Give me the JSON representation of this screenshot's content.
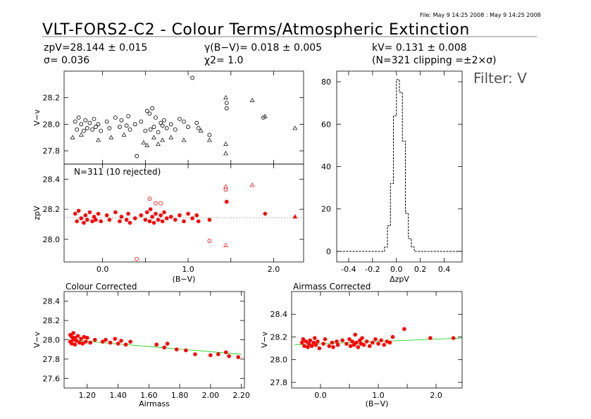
{
  "header": {
    "file_line": "File: May  9 14:25 2008 : May  9 14:25 2008",
    "title": "VLT-FORS2-C2 - Colour Terms/Atmospheric Extinction",
    "stats": {
      "zp": "zpV=28.144 ± 0.015",
      "sigma": "σ= 0.036",
      "gamma": "γ(B−V)= 0.018 ± 0.005",
      "chi2": "χ2= 1.0",
      "k": "kV= 0.131 ± 0.008",
      "clip": "(N=321 clipping =±2×σ)"
    },
    "filter": "Filter: V"
  },
  "colors": {
    "data": "#ff0000",
    "fit": "#00cc00",
    "axes": "#000000",
    "reference": "#999999"
  },
  "chart_data": [
    {
      "id": "raw",
      "type": "scatter",
      "ylabel": "V−v",
      "xlim": [
        -0.45,
        2.35
      ],
      "ylim": [
        27.7,
        28.4
      ],
      "y_ticks": [
        27.8,
        28.0,
        28.2
      ],
      "x_ticks": [
        0.0,
        0.5,
        1.0,
        1.5,
        2.0
      ],
      "markers": [
        "circle",
        "triangle"
      ],
      "points": [
        [
          -0.32,
          28.02
        ],
        [
          -0.3,
          27.96
        ],
        [
          -0.28,
          28.05
        ],
        [
          -0.25,
          28.0
        ],
        [
          -0.22,
          27.95
        ],
        [
          -0.2,
          28.03
        ],
        [
          -0.18,
          27.97
        ],
        [
          -0.15,
          28.01
        ],
        [
          -0.12,
          27.96
        ],
        [
          -0.1,
          28.04
        ],
        [
          -0.08,
          27.98
        ],
        [
          -0.05,
          28.0
        ],
        [
          -0.02,
          27.95
        ],
        [
          0.05,
          28.02
        ],
        [
          0.08,
          27.97
        ],
        [
          0.15,
          28.05
        ],
        [
          0.2,
          27.98
        ],
        [
          0.22,
          28.03
        ],
        [
          0.28,
          27.99
        ],
        [
          0.3,
          28.06
        ],
        [
          0.32,
          27.96
        ],
        [
          0.38,
          28.0
        ],
        [
          0.4,
          27.76
        ],
        [
          0.45,
          28.02
        ],
        [
          0.5,
          27.95
        ],
        [
          0.52,
          28.1
        ],
        [
          0.55,
          28.08
        ],
        [
          0.56,
          27.96
        ],
        [
          0.58,
          28.12
        ],
        [
          0.6,
          27.98
        ],
        [
          0.62,
          28.05
        ],
        [
          0.65,
          27.94
        ],
        [
          0.68,
          28.01
        ],
        [
          0.7,
          27.99
        ],
        [
          0.72,
          28.03
        ],
        [
          0.75,
          27.97
        ],
        [
          0.8,
          28.0
        ],
        [
          0.85,
          27.96
        ],
        [
          0.9,
          28.04
        ],
        [
          0.95,
          28.02
        ],
        [
          1.0,
          27.98
        ],
        [
          1.05,
          28.35
        ],
        [
          1.1,
          28.01
        ],
        [
          1.12,
          27.97
        ],
        [
          1.25,
          27.92
        ],
        [
          1.45,
          28.12
        ],
        [
          1.45,
          28.16
        ],
        [
          1.88,
          28.05
        ]
      ],
      "triangles": [
        [
          -0.35,
          27.9
        ],
        [
          -0.25,
          27.92
        ],
        [
          -0.05,
          27.88
        ],
        [
          0.1,
          27.9
        ],
        [
          0.25,
          27.92
        ],
        [
          0.48,
          27.86
        ],
        [
          0.52,
          27.84
        ],
        [
          0.6,
          27.9
        ],
        [
          0.65,
          27.85
        ],
        [
          0.7,
          27.88
        ],
        [
          0.8,
          27.9
        ],
        [
          0.95,
          27.88
        ],
        [
          1.15,
          27.95
        ],
        [
          1.25,
          27.88
        ],
        [
          1.44,
          27.78
        ],
        [
          1.44,
          27.85
        ],
        [
          1.44,
          28.2
        ],
        [
          1.75,
          28.18
        ],
        [
          1.9,
          28.06
        ],
        [
          2.25,
          27.97
        ]
      ]
    },
    {
      "id": "zp",
      "type": "scatter",
      "title": "N=311 (10 rejected)",
      "xlabel": "(B−V)",
      "ylabel": "zpV",
      "xlim": [
        -0.45,
        2.35
      ],
      "ylim": [
        27.85,
        28.5
      ],
      "y_ticks": [
        28.0,
        28.2,
        28.4
      ],
      "x_ticks": [
        0.0,
        0.5,
        1.0,
        1.5,
        2.0
      ],
      "x_tick_labels": [
        "0.0",
        "1.0",
        "2.0"
      ],
      "reference_line": 28.144,
      "points": [
        [
          -0.32,
          28.17
        ],
        [
          -0.3,
          28.12
        ],
        [
          -0.28,
          28.19
        ],
        [
          -0.25,
          28.14
        ],
        [
          -0.22,
          28.11
        ],
        [
          -0.2,
          28.16
        ],
        [
          -0.18,
          28.13
        ],
        [
          -0.15,
          28.18
        ],
        [
          -0.12,
          28.12
        ],
        [
          -0.1,
          28.15
        ],
        [
          -0.08,
          28.13
        ],
        [
          -0.05,
          28.17
        ],
        [
          -0.02,
          28.12
        ],
        [
          0.05,
          28.16
        ],
        [
          0.08,
          28.13
        ],
        [
          0.15,
          28.18
        ],
        [
          0.2,
          28.12
        ],
        [
          0.22,
          28.15
        ],
        [
          0.28,
          28.13
        ],
        [
          0.3,
          28.17
        ],
        [
          0.32,
          28.11
        ],
        [
          0.38,
          28.14
        ],
        [
          0.45,
          28.16
        ],
        [
          0.5,
          28.13
        ],
        [
          0.52,
          28.18
        ],
        [
          0.55,
          28.12
        ],
        [
          0.56,
          28.2
        ],
        [
          0.58,
          28.15
        ],
        [
          0.6,
          28.11
        ],
        [
          0.62,
          28.17
        ],
        [
          0.65,
          28.13
        ],
        [
          0.68,
          28.16
        ],
        [
          0.7,
          28.12
        ],
        [
          0.72,
          28.18
        ],
        [
          0.75,
          28.14
        ],
        [
          0.8,
          28.15
        ],
        [
          0.85,
          28.13
        ],
        [
          0.9,
          28.16
        ],
        [
          0.95,
          28.12
        ],
        [
          1.0,
          28.17
        ],
        [
          1.05,
          28.14
        ],
        [
          1.1,
          28.16
        ],
        [
          1.12,
          28.12
        ],
        [
          1.25,
          28.13
        ],
        [
          1.45,
          28.25
        ],
        [
          1.9,
          28.17
        ]
      ],
      "rejected_circles": [
        [
          0.4,
          27.87
        ],
        [
          0.55,
          28.27
        ],
        [
          0.62,
          28.24
        ],
        [
          0.68,
          28.24
        ],
        [
          1.25,
          27.99
        ],
        [
          1.44,
          28.33
        ]
      ],
      "rejected_triangles": [
        [
          1.44,
          27.96
        ],
        [
          1.44,
          28.35
        ],
        [
          1.75,
          28.36
        ]
      ],
      "triangles": [
        [
          2.25,
          28.15
        ]
      ]
    },
    {
      "id": "hist",
      "type": "histogram",
      "xlabel": "ΔzpV",
      "xlim": [
        -0.5,
        0.55
      ],
      "ylim": [
        -5,
        85
      ],
      "x_ticks": [
        -0.4,
        -0.2,
        0.0,
        0.2,
        0.4
      ],
      "y_ticks": [
        0,
        20,
        40,
        60,
        80
      ],
      "bin_width": 0.025,
      "bins_start": -0.1,
      "counts": [
        2,
        12,
        32,
        64,
        81,
        75,
        52,
        18,
        6,
        2
      ]
    },
    {
      "id": "colour_corrected",
      "type": "scatter",
      "title": "Colour Corrected",
      "xlabel": "Airmass",
      "ylabel": "V−v",
      "xlim": [
        1.05,
        2.22
      ],
      "ylim": [
        27.5,
        28.5
      ],
      "y_ticks": [
        27.6,
        27.8,
        28.0,
        28.2,
        28.4
      ],
      "x_ticks": [
        1.2,
        1.4,
        1.6,
        1.8,
        2.0,
        2.2
      ],
      "x_tick_labels": [
        "1.20",
        "1.40",
        "1.60",
        "1.80",
        "2.00",
        "2.20"
      ],
      "fit": [
        [
          1.08,
          28.0
        ],
        [
          2.2,
          27.85
        ]
      ],
      "points": [
        [
          1.09,
          28.05
        ],
        [
          1.09,
          27.98
        ],
        [
          1.1,
          28.03
        ],
        [
          1.1,
          27.96
        ],
        [
          1.11,
          28.0
        ],
        [
          1.11,
          28.07
        ],
        [
          1.12,
          27.95
        ],
        [
          1.12,
          28.02
        ],
        [
          1.13,
          27.99
        ],
        [
          1.14,
          28.04
        ],
        [
          1.15,
          27.97
        ],
        [
          1.16,
          28.01
        ],
        [
          1.17,
          27.96
        ],
        [
          1.18,
          28.03
        ],
        [
          1.19,
          27.98
        ],
        [
          1.2,
          28.02
        ],
        [
          1.22,
          27.97
        ],
        [
          1.25,
          28.0
        ],
        [
          1.3,
          27.98
        ],
        [
          1.32,
          28.0
        ],
        [
          1.35,
          27.97
        ],
        [
          1.38,
          28.01
        ],
        [
          1.4,
          27.96
        ],
        [
          1.42,
          27.99
        ],
        [
          1.45,
          27.95
        ],
        [
          1.48,
          27.98
        ],
        [
          1.65,
          27.95
        ],
        [
          1.7,
          27.92
        ],
        [
          1.72,
          27.96
        ],
        [
          1.78,
          27.9
        ],
        [
          1.84,
          27.89
        ],
        [
          1.9,
          27.85
        ],
        [
          2.0,
          27.84
        ],
        [
          2.05,
          27.85
        ],
        [
          2.1,
          27.87
        ],
        [
          2.12,
          27.83
        ],
        [
          2.18,
          27.82
        ]
      ]
    },
    {
      "id": "airmass_corrected",
      "type": "scatter",
      "title": "Airmass Corrected",
      "xlabel": "(B−V)",
      "ylabel": "V−v",
      "xlim": [
        -0.5,
        2.45
      ],
      "ylim": [
        27.75,
        28.6
      ],
      "y_ticks": [
        27.8,
        28.0,
        28.2,
        28.4
      ],
      "x_ticks": [
        0.0,
        0.5,
        1.0,
        1.5,
        2.0
      ],
      "x_tick_labels": [
        "0.0",
        "1.0",
        "2.0"
      ],
      "fit": [
        [
          -0.45,
          28.13
        ],
        [
          2.45,
          28.19
        ]
      ],
      "points": [
        [
          -0.32,
          28.15
        ],
        [
          -0.3,
          28.18
        ],
        [
          -0.28,
          28.12
        ],
        [
          -0.25,
          28.16
        ],
        [
          -0.22,
          28.11
        ],
        [
          -0.2,
          28.14
        ],
        [
          -0.18,
          28.17
        ],
        [
          -0.15,
          28.12
        ],
        [
          -0.12,
          28.15
        ],
        [
          -0.1,
          28.19
        ],
        [
          -0.08,
          28.13
        ],
        [
          -0.05,
          28.16
        ],
        [
          -0.02,
          28.1
        ],
        [
          0.05,
          28.14
        ],
        [
          0.08,
          28.18
        ],
        [
          0.15,
          28.12
        ],
        [
          0.2,
          28.15
        ],
        [
          0.22,
          28.11
        ],
        [
          0.28,
          28.16
        ],
        [
          0.3,
          28.13
        ],
        [
          0.38,
          28.17
        ],
        [
          0.45,
          28.14
        ],
        [
          0.5,
          28.18
        ],
        [
          0.52,
          28.12
        ],
        [
          0.55,
          28.16
        ],
        [
          0.58,
          28.13
        ],
        [
          0.6,
          28.22
        ],
        [
          0.62,
          28.15
        ],
        [
          0.65,
          28.11
        ],
        [
          0.68,
          28.17
        ],
        [
          0.7,
          28.14
        ],
        [
          0.72,
          28.19
        ],
        [
          0.75,
          28.13
        ],
        [
          0.8,
          28.16
        ],
        [
          0.85,
          28.12
        ],
        [
          0.9,
          28.15
        ],
        [
          0.95,
          28.18
        ],
        [
          1.0,
          28.14
        ],
        [
          1.05,
          28.17
        ],
        [
          1.1,
          28.13
        ],
        [
          1.15,
          28.16
        ],
        [
          1.2,
          28.15
        ],
        [
          1.25,
          28.2
        ],
        [
          1.45,
          28.27
        ],
        [
          1.9,
          28.19
        ],
        [
          2.3,
          28.19
        ]
      ]
    }
  ]
}
